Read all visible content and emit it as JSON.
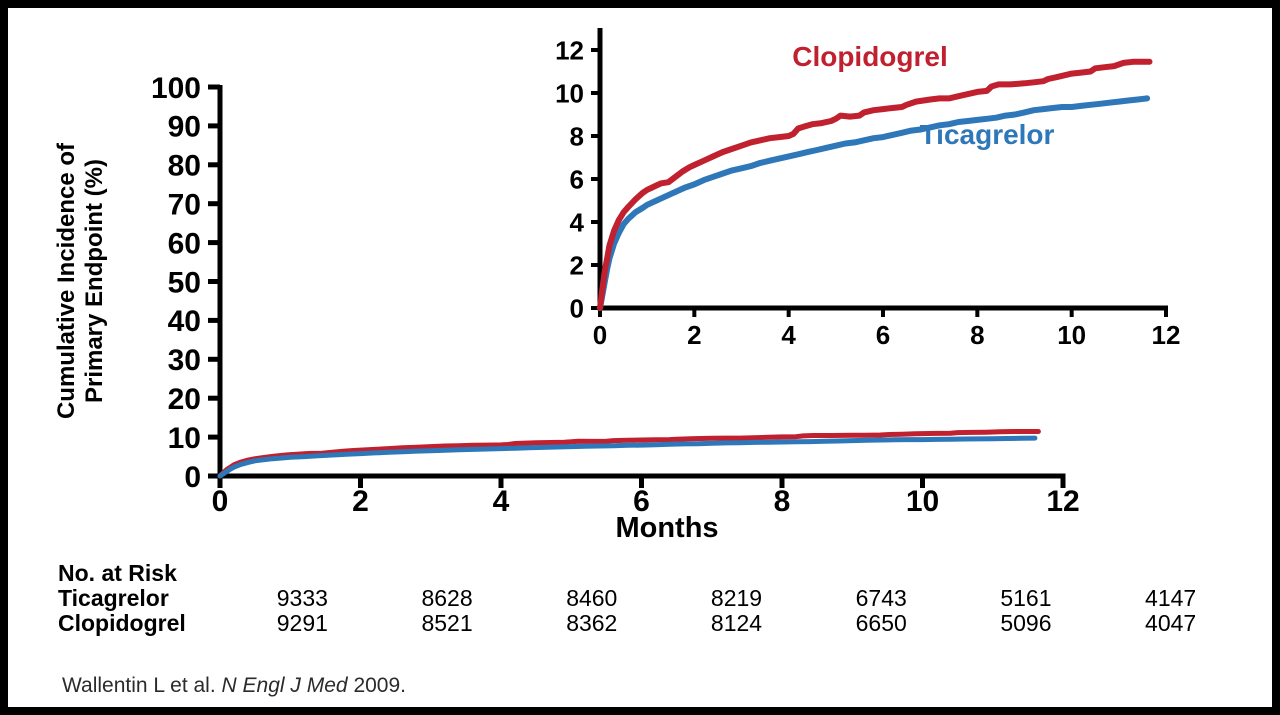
{
  "figure": {
    "citation": {
      "prefix": "Wallentin L et al.",
      "journal": "N Engl J Med",
      "suffix": "2009."
    }
  },
  "risk_table": {
    "title": "No. at Risk",
    "rows": [
      {
        "label": "Ticagrelor",
        "values": [
          "9333",
          "8628",
          "8460",
          "8219",
          "6743",
          "5161",
          "4147"
        ]
      },
      {
        "label": "Clopidogrel",
        "values": [
          "9291",
          "8521",
          "8362",
          "8124",
          "6650",
          "5096",
          "4047"
        ]
      }
    ]
  },
  "colors": {
    "ticagrelor": "#2E77B8",
    "clopidogrel": "#C1202E",
    "axis": "#000000"
  },
  "chart_data": {
    "type": "line",
    "title": "",
    "series": [
      {
        "name": "Ticagrelor",
        "color": "#2E77B8",
        "points": [
          [
            0,
            0
          ],
          [
            0.05,
            0.6
          ],
          [
            0.1,
            1.2
          ],
          [
            0.15,
            1.8
          ],
          [
            0.2,
            2.3
          ],
          [
            0.3,
            3.0
          ],
          [
            0.4,
            3.5
          ],
          [
            0.5,
            3.9
          ],
          [
            0.6,
            4.15
          ],
          [
            0.75,
            4.45
          ],
          [
            0.9,
            4.65
          ],
          [
            1,
            4.8
          ],
          [
            1.2,
            5.0
          ],
          [
            1.4,
            5.2
          ],
          [
            1.6,
            5.4
          ],
          [
            1.8,
            5.6
          ],
          [
            2,
            5.75
          ],
          [
            2.2,
            5.95
          ],
          [
            2.4,
            6.1
          ],
          [
            2.6,
            6.25
          ],
          [
            2.8,
            6.4
          ],
          [
            3,
            6.5
          ],
          [
            3.2,
            6.6
          ],
          [
            3.4,
            6.75
          ],
          [
            3.6,
            6.85
          ],
          [
            3.8,
            6.95
          ],
          [
            4,
            7.05
          ],
          [
            4.2,
            7.15
          ],
          [
            4.4,
            7.25
          ],
          [
            4.6,
            7.35
          ],
          [
            4.8,
            7.45
          ],
          [
            5,
            7.55
          ],
          [
            5.2,
            7.65
          ],
          [
            5.4,
            7.7
          ],
          [
            5.6,
            7.8
          ],
          [
            5.8,
            7.9
          ],
          [
            6,
            7.95
          ],
          [
            6.2,
            8.05
          ],
          [
            6.4,
            8.15
          ],
          [
            6.6,
            8.25
          ],
          [
            6.8,
            8.3
          ],
          [
            7,
            8.4
          ],
          [
            7.2,
            8.5
          ],
          [
            7.4,
            8.55
          ],
          [
            7.6,
            8.65
          ],
          [
            7.8,
            8.7
          ],
          [
            8,
            8.75
          ],
          [
            8.2,
            8.8
          ],
          [
            8.4,
            8.85
          ],
          [
            8.6,
            8.95
          ],
          [
            8.8,
            9.0
          ],
          [
            9,
            9.1
          ],
          [
            9.2,
            9.2
          ],
          [
            9.4,
            9.25
          ],
          [
            9.6,
            9.3
          ],
          [
            9.8,
            9.35
          ],
          [
            10,
            9.35
          ],
          [
            10.2,
            9.4
          ],
          [
            10.4,
            9.45
          ],
          [
            10.6,
            9.5
          ],
          [
            10.8,
            9.55
          ],
          [
            11,
            9.6
          ],
          [
            11.2,
            9.65
          ],
          [
            11.4,
            9.7
          ],
          [
            11.6,
            9.75
          ]
        ]
      },
      {
        "name": "Clopidogrel",
        "color": "#C1202E",
        "points": [
          [
            0,
            0
          ],
          [
            0.05,
            0.9
          ],
          [
            0.1,
            1.7
          ],
          [
            0.15,
            2.3
          ],
          [
            0.2,
            2.9
          ],
          [
            0.3,
            3.6
          ],
          [
            0.4,
            4.1
          ],
          [
            0.5,
            4.45
          ],
          [
            0.6,
            4.7
          ],
          [
            0.75,
            5.05
          ],
          [
            0.9,
            5.35
          ],
          [
            1,
            5.5
          ],
          [
            1.1,
            5.6
          ],
          [
            1.2,
            5.7
          ],
          [
            1.3,
            5.8
          ],
          [
            1.45,
            5.85
          ],
          [
            1.6,
            6.1
          ],
          [
            1.75,
            6.35
          ],
          [
            1.9,
            6.55
          ],
          [
            2,
            6.65
          ],
          [
            2.2,
            6.85
          ],
          [
            2.4,
            7.05
          ],
          [
            2.6,
            7.25
          ],
          [
            2.8,
            7.4
          ],
          [
            3,
            7.55
          ],
          [
            3.2,
            7.7
          ],
          [
            3.4,
            7.8
          ],
          [
            3.6,
            7.9
          ],
          [
            3.8,
            7.95
          ],
          [
            4,
            8.0
          ],
          [
            4.1,
            8.1
          ],
          [
            4.2,
            8.35
          ],
          [
            4.35,
            8.45
          ],
          [
            4.5,
            8.55
          ],
          [
            4.7,
            8.6
          ],
          [
            4.9,
            8.7
          ],
          [
            5,
            8.8
          ],
          [
            5.1,
            8.95
          ],
          [
            5.3,
            8.9
          ],
          [
            5.5,
            8.95
          ],
          [
            5.6,
            9.1
          ],
          [
            5.8,
            9.2
          ],
          [
            6,
            9.25
          ],
          [
            6.2,
            9.3
          ],
          [
            6.4,
            9.35
          ],
          [
            6.5,
            9.45
          ],
          [
            6.7,
            9.6
          ],
          [
            7,
            9.7
          ],
          [
            7.2,
            9.75
          ],
          [
            7.4,
            9.75
          ],
          [
            7.6,
            9.85
          ],
          [
            7.8,
            9.95
          ],
          [
            8,
            10.05
          ],
          [
            8.2,
            10.1
          ],
          [
            8.3,
            10.3
          ],
          [
            8.45,
            10.4
          ],
          [
            8.7,
            10.4
          ],
          [
            9,
            10.45
          ],
          [
            9.2,
            10.5
          ],
          [
            9.4,
            10.55
          ],
          [
            9.5,
            10.65
          ],
          [
            9.7,
            10.75
          ],
          [
            9.9,
            10.85
          ],
          [
            10,
            10.9
          ],
          [
            10.2,
            10.95
          ],
          [
            10.4,
            11.0
          ],
          [
            10.5,
            11.15
          ],
          [
            10.7,
            11.2
          ],
          [
            10.9,
            11.25
          ],
          [
            11.1,
            11.4
          ],
          [
            11.3,
            11.45
          ],
          [
            11.5,
            11.45
          ],
          [
            11.65,
            11.45
          ]
        ]
      }
    ],
    "main": {
      "xlabel": "Months",
      "ylabel": "Cumulative Incidence of Primary Endpoint (%)",
      "ylabel_lines": [
        "Cumulative Incidence of",
        "Primary Endpoint (%)"
      ],
      "xlim": [
        0,
        12
      ],
      "ylim": [
        0,
        100
      ],
      "xticks": [
        0,
        2,
        4,
        6,
        8,
        10,
        12
      ],
      "yticks": [
        0,
        10,
        20,
        30,
        40,
        50,
        60,
        70,
        80,
        90,
        100
      ],
      "grid": false
    },
    "inset": {
      "xlabel": "",
      "ylabel": "",
      "xlim": [
        0,
        12
      ],
      "ylim": [
        0,
        12
      ],
      "xticks": [
        0,
        2,
        4,
        6,
        8,
        10,
        12
      ],
      "yticks": [
        0,
        2,
        4,
        6,
        8,
        10,
        12
      ],
      "grid": false,
      "legend_position": "inline-labels"
    }
  }
}
